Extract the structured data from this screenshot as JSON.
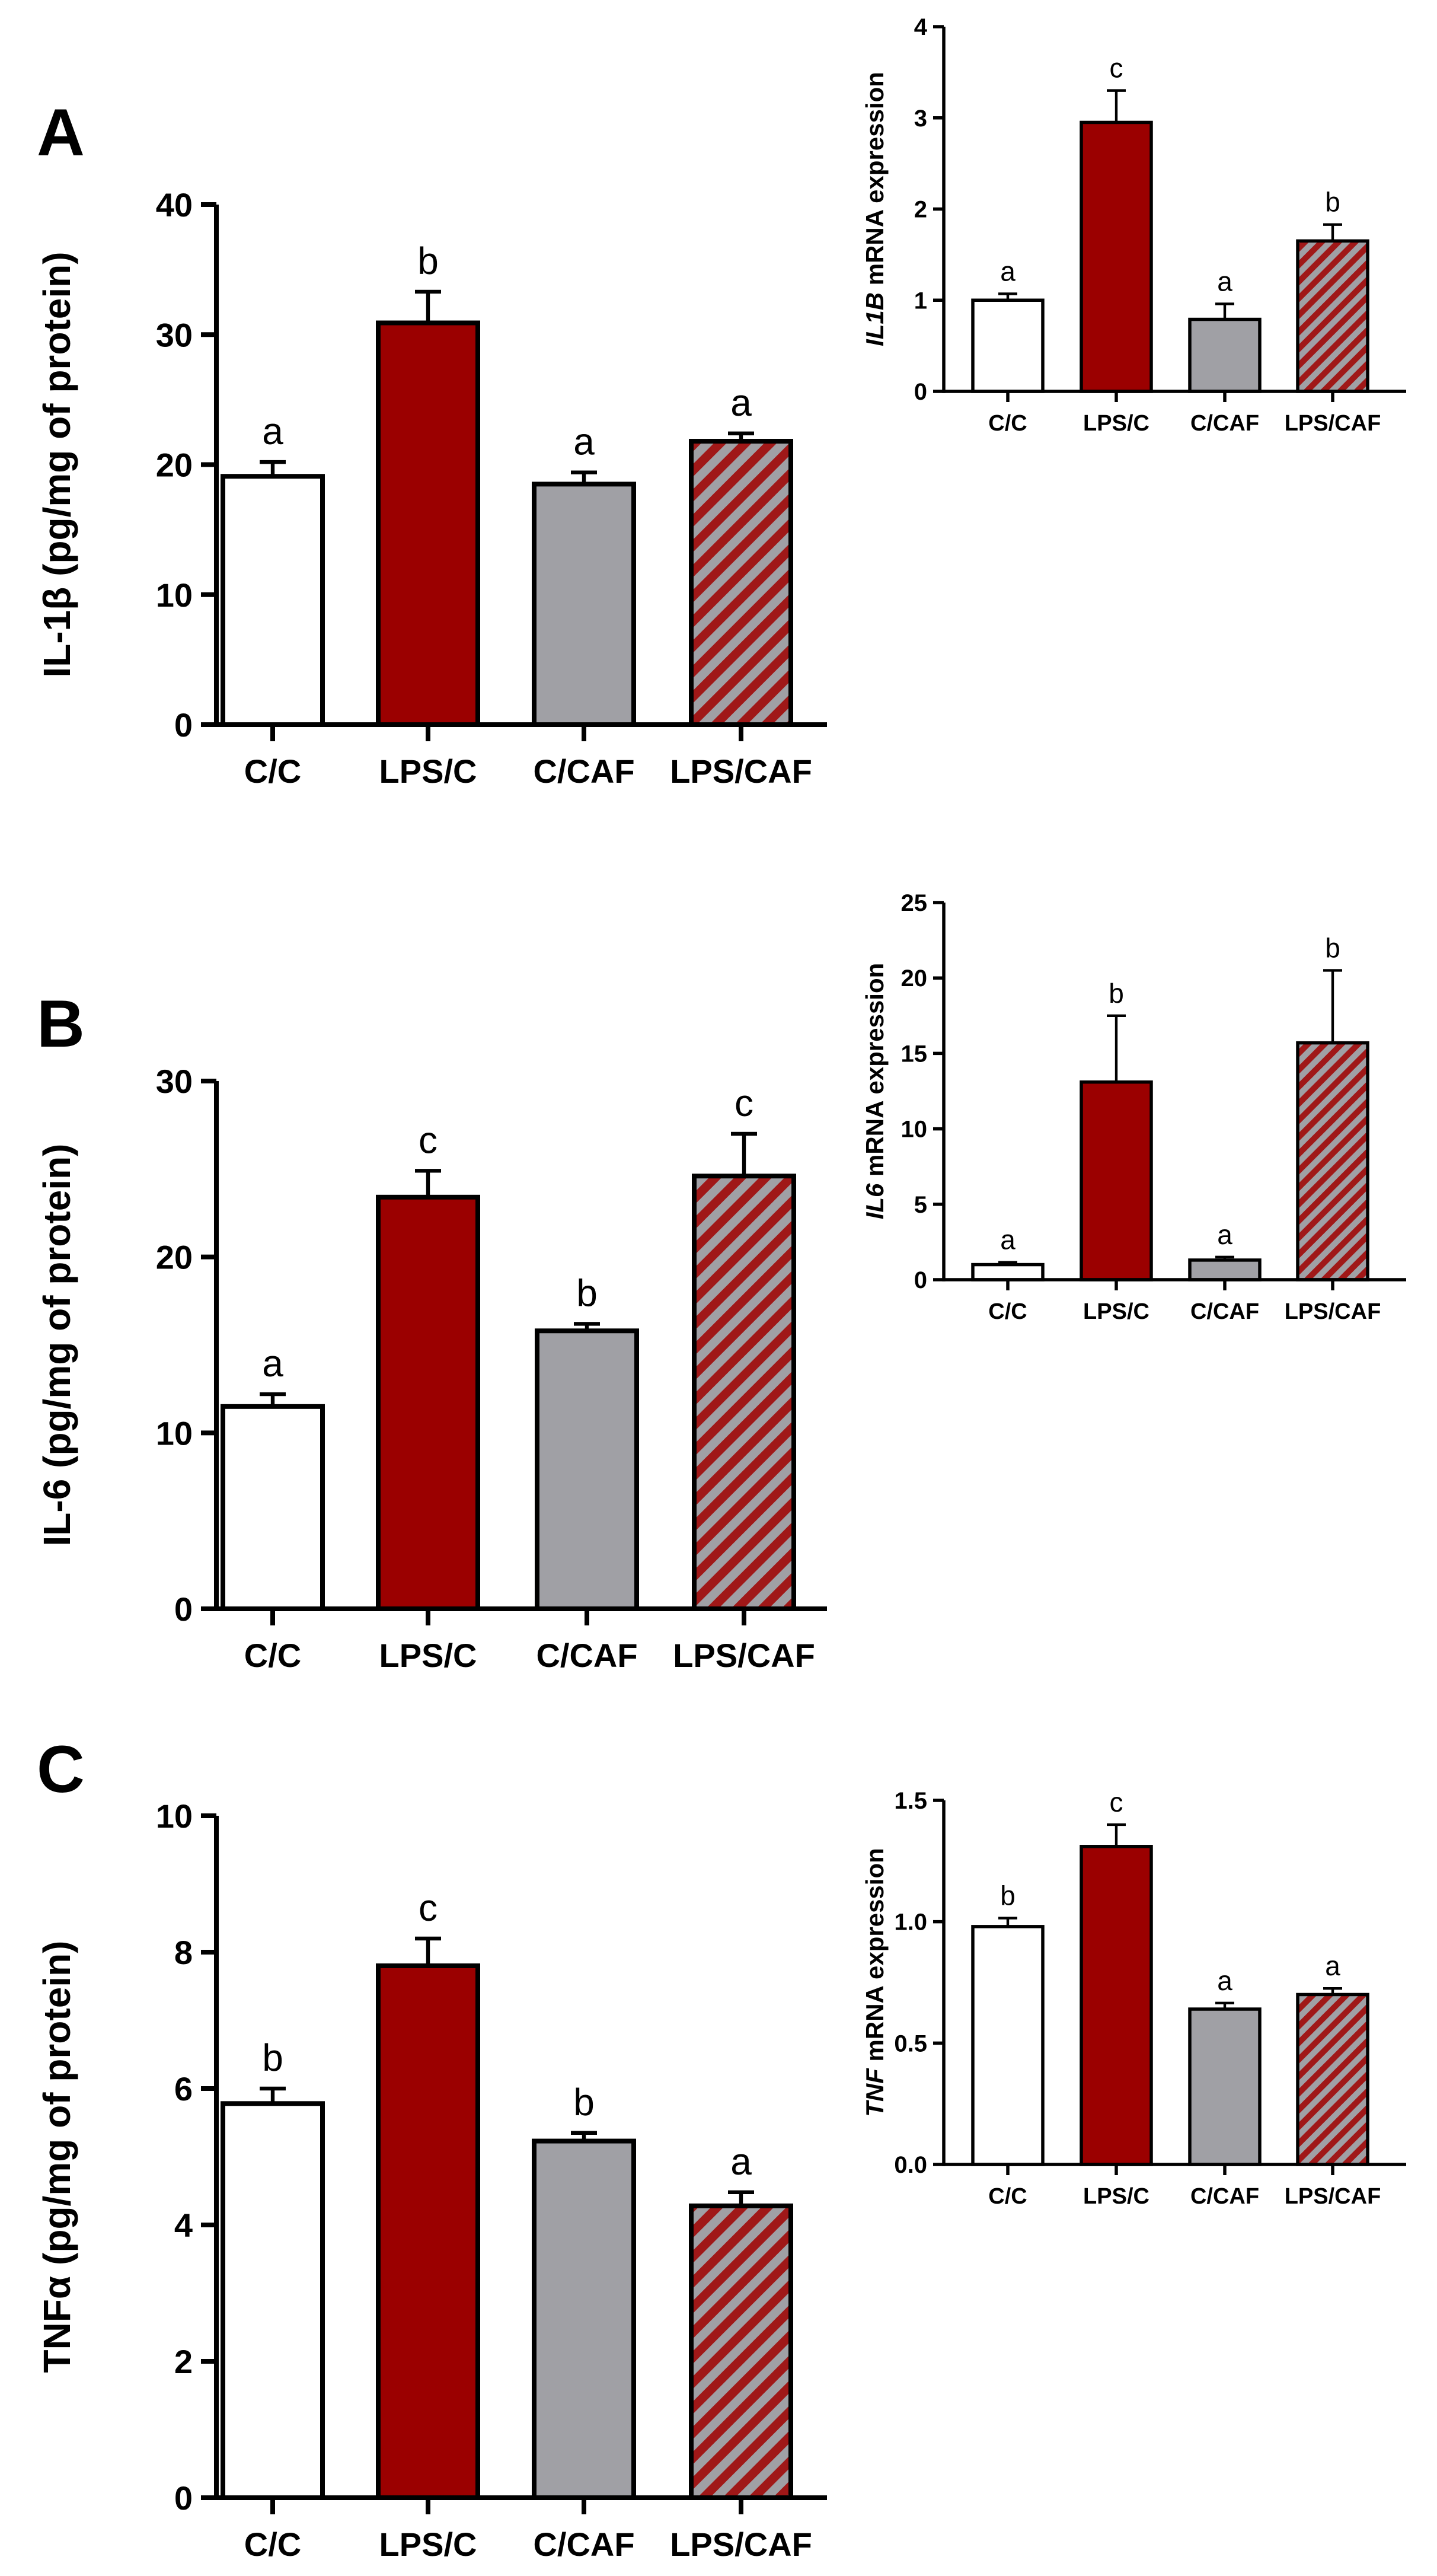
{
  "colors": {
    "white_fill": "#ffffff",
    "lps_fill": "#9b0000",
    "caf_fill": "#a0a0a5",
    "stripe": "#a01818",
    "axis": "#000000"
  },
  "chart_data": [
    {
      "id": "A-protein",
      "panel_letter": "A",
      "type": "bar",
      "categories": [
        "C/C",
        "LPS/C",
        "C/CAF",
        "LPS/CAF"
      ],
      "values": [
        19.1,
        30.9,
        18.5,
        21.8
      ],
      "errors": [
        1.1,
        2.4,
        0.9,
        0.6
      ],
      "significance": [
        "a",
        "b",
        "a",
        "a"
      ],
      "ylim": [
        0,
        40
      ],
      "yticks": [
        "0",
        "10",
        "20",
        "30",
        "40"
      ],
      "ylabel": "IL-1β (pg/mg of protein)"
    },
    {
      "id": "A-mrna",
      "type": "bar",
      "categories": [
        "C/C",
        "LPS/C",
        "C/CAF",
        "LPS/CAF"
      ],
      "values": [
        1.0,
        2.95,
        0.79,
        1.65
      ],
      "errors": [
        0.07,
        0.35,
        0.17,
        0.18
      ],
      "significance": [
        "a",
        "c",
        "a",
        "b"
      ],
      "ylim": [
        0,
        4
      ],
      "yticks": [
        "0",
        "1",
        "2",
        "3",
        "4"
      ],
      "ylabel_italic": "IL1B",
      "ylabel_rest": " mRNA expression"
    },
    {
      "id": "B-protein",
      "panel_letter": "B",
      "type": "bar",
      "categories": [
        "C/C",
        "LPS/C",
        "C/CAF",
        "LPS/CAF"
      ],
      "values": [
        11.5,
        23.4,
        15.8,
        24.6
      ],
      "errors": [
        0.7,
        1.5,
        0.4,
        2.4
      ],
      "significance": [
        "a",
        "c",
        "b",
        "c"
      ],
      "ylim": [
        0,
        30
      ],
      "yticks": [
        "0",
        "10",
        "20",
        "30"
      ],
      "ylabel": "IL-6 (pg/mg of protein)"
    },
    {
      "id": "B-mrna",
      "type": "bar",
      "categories": [
        "C/C",
        "LPS/C",
        "C/CAF",
        "LPS/CAF"
      ],
      "values": [
        1.0,
        13.1,
        1.3,
        15.7
      ],
      "errors": [
        0.15,
        4.4,
        0.2,
        4.8
      ],
      "significance": [
        "a",
        "b",
        "a",
        "b"
      ],
      "ylim": [
        0,
        25
      ],
      "yticks": [
        "0",
        "5",
        "10",
        "15",
        "20",
        "25"
      ],
      "ylabel_italic": "IL6",
      "ylabel_rest": " mRNA expression"
    },
    {
      "id": "C-protein",
      "panel_letter": "C",
      "type": "bar",
      "categories": [
        "C/C",
        "LPS/C",
        "C/CAF",
        "LPS/CAF"
      ],
      "values": [
        5.78,
        7.8,
        5.23,
        4.28
      ],
      "errors": [
        0.22,
        0.4,
        0.12,
        0.2
      ],
      "significance": [
        "b",
        "c",
        "b",
        "a"
      ],
      "ylim": [
        0,
        10
      ],
      "yticks": [
        "0",
        "2",
        "4",
        "6",
        "8",
        "10"
      ],
      "ylabel": "TNFα (pg/mg of protein)"
    },
    {
      "id": "C-mrna",
      "type": "bar",
      "categories": [
        "C/C",
        "LPS/C",
        "C/CAF",
        "LPS/CAF"
      ],
      "values": [
        0.98,
        1.31,
        0.64,
        0.7
      ],
      "errors": [
        0.035,
        0.09,
        0.025,
        0.025
      ],
      "significance": [
        "b",
        "c",
        "a",
        "a"
      ],
      "ylim": [
        0,
        1.5
      ],
      "yticks": [
        "0.0",
        "0.5",
        "1.0",
        "1.5"
      ],
      "ylabel_italic": "TNF",
      "ylabel_rest": " mRNA expression"
    }
  ]
}
